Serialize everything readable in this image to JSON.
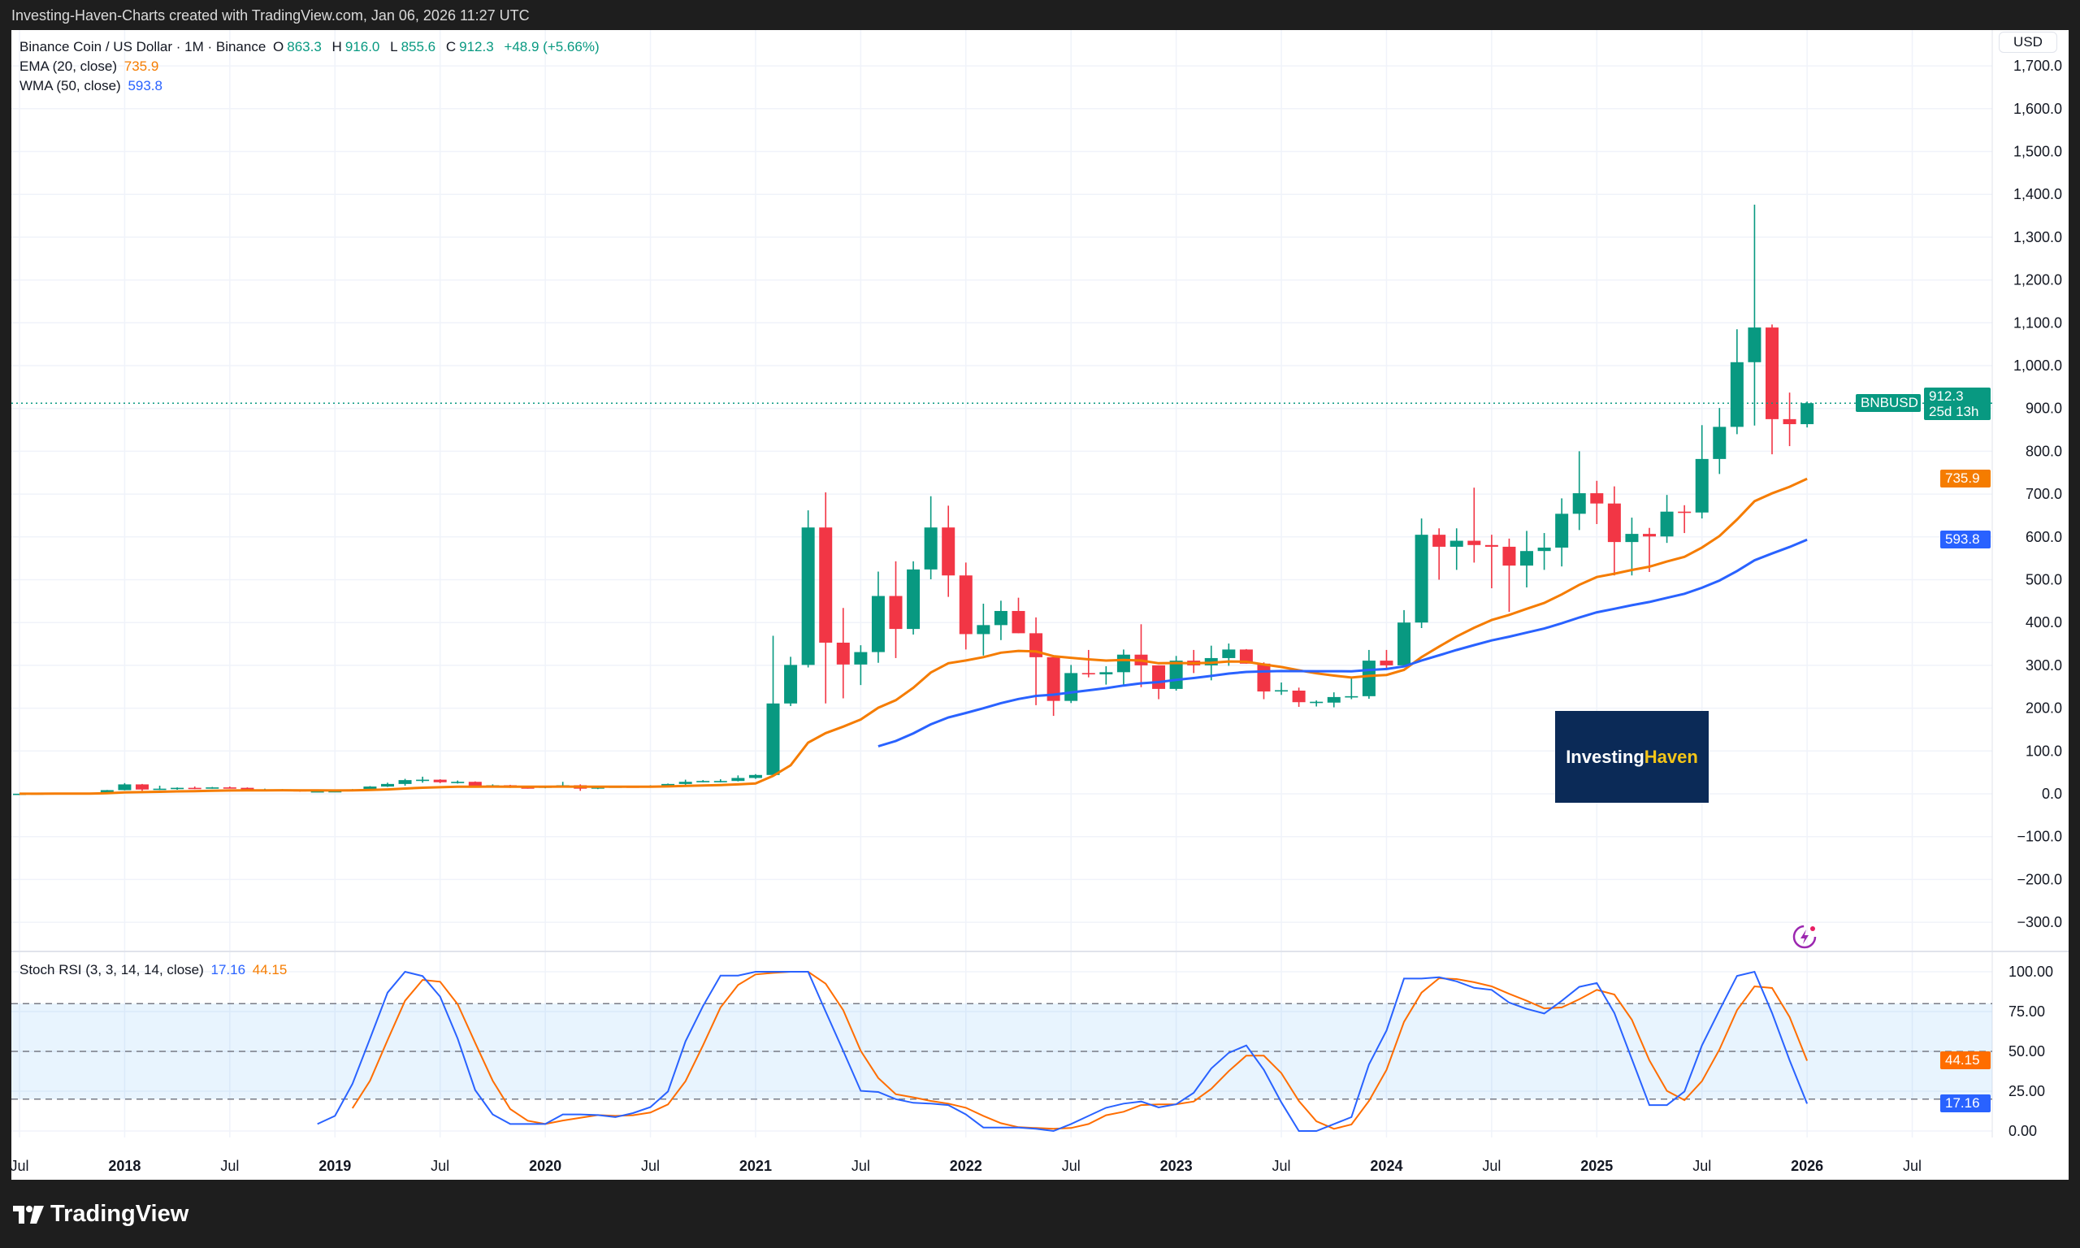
{
  "header": {
    "caption": "Investing-Haven-Charts created with TradingView.com, Jan 06, 2026 11:27 UTC"
  },
  "legend": {
    "symbol": "Binance Coin / US Dollar · 1M · Binance",
    "o_label": "O",
    "o": "863.3",
    "h_label": "H",
    "h": "916.0",
    "l_label": "L",
    "l": "855.6",
    "c_label": "C",
    "c": "912.3",
    "change": "+48.9 (+5.66%)",
    "ema_label": "EMA (20, close)",
    "ema_value": "735.9",
    "wma_label": "WMA (50, close)",
    "wma_value": "593.8",
    "stoch_label": "Stoch RSI (3, 3, 14, 14, close)",
    "stoch_k": "17.16",
    "stoch_d": "44.15"
  },
  "price_axis": {
    "currency": "USD",
    "ticks": [
      "1,700.0",
      "1,600.0",
      "1,500.0",
      "1,400.0",
      "1,300.0",
      "1,200.0",
      "1,100.0",
      "1,000.0",
      "900.0",
      "800.0",
      "700.0",
      "600.0",
      "500.0",
      "400.0",
      "300.0",
      "200.0",
      "100.0",
      "0.0",
      "−100.0",
      "−200.0",
      "−300.0"
    ],
    "tick_values": [
      1700,
      1600,
      1500,
      1400,
      1300,
      1200,
      1100,
      1000,
      900,
      800,
      700,
      600,
      500,
      400,
      300,
      200,
      100,
      0,
      -100,
      -200,
      -300
    ],
    "symbol_tag": "BNBUSD",
    "last_price": "912.3",
    "countdown": "25d 13h",
    "ema_tag": "735.9",
    "wma_tag": "593.8"
  },
  "stoch_axis": {
    "ticks": [
      "100.00",
      "75.00",
      "50.00",
      "25.00",
      "0.00"
    ],
    "tick_values": [
      100,
      75,
      50,
      25,
      0
    ],
    "k_tag": "17.16",
    "d_tag": "44.15"
  },
  "time_axis": {
    "labels": [
      "Jul",
      "2018",
      "Jul",
      "2019",
      "Jul",
      "2020",
      "Jul",
      "2021",
      "Jul",
      "2022",
      "Jul",
      "2023",
      "Jul",
      "2024",
      "Jul",
      "2025",
      "Jul",
      "2026",
      "Jul"
    ],
    "label_months": [
      "2017-07",
      "2018-01",
      "2018-07",
      "2019-01",
      "2019-07",
      "2020-01",
      "2020-07",
      "2021-01",
      "2021-07",
      "2022-01",
      "2022-07",
      "2023-01",
      "2023-07",
      "2024-01",
      "2024-07",
      "2025-01",
      "2025-07",
      "2026-01",
      "2026-07"
    ]
  },
  "watermark": {
    "part1": "Investing",
    "part2": "Haven"
  },
  "footer": {
    "brand": "TradingView"
  },
  "colors": {
    "up": "#089981",
    "down": "#f23645",
    "ema": "#f57c00",
    "wma": "#2962ff",
    "stoch_k": "#2962ff",
    "stoch_d": "#ff6d00",
    "band": "#2196f3"
  },
  "chart_data": {
    "type": "candlestick",
    "symbol": "BNBUSD",
    "interval": "1M",
    "ylim": [
      -300,
      1700
    ],
    "grid": true,
    "columns": [
      "month",
      "open",
      "high",
      "low",
      "close"
    ],
    "ohlc": [
      [
        "2017-07",
        0.1,
        0.3,
        0.1,
        0.2
      ],
      [
        "2017-08",
        0.2,
        1.0,
        0.2,
        0.9
      ],
      [
        "2017-09",
        0.9,
        2.0,
        0.8,
        1.6
      ],
      [
        "2017-10",
        1.6,
        1.8,
        1.3,
        1.5
      ],
      [
        "2017-11",
        1.5,
        2.2,
        1.4,
        1.9
      ],
      [
        "2017-12",
        1.9,
        9.0,
        1.9,
        8.6
      ],
      [
        "2018-01",
        8.6,
        25,
        8,
        22
      ],
      [
        "2018-02",
        22,
        23,
        7,
        10
      ],
      [
        "2018-03",
        10,
        19,
        9,
        12
      ],
      [
        "2018-04",
        12,
        15,
        9.5,
        14
      ],
      [
        "2018-05",
        14,
        17,
        11,
        13
      ],
      [
        "2018-06",
        13,
        16,
        12,
        15
      ],
      [
        "2018-07",
        15,
        17,
        13,
        14
      ],
      [
        "2018-08",
        14,
        15,
        9,
        10
      ],
      [
        "2018-09",
        10,
        12,
        9,
        10
      ],
      [
        "2018-10",
        10,
        11,
        9,
        10
      ],
      [
        "2018-11",
        10,
        10,
        5,
        5.5
      ],
      [
        "2018-12",
        5.5,
        6.5,
        4.2,
        6
      ],
      [
        "2019-01",
        6,
        7,
        5,
        6.3
      ],
      [
        "2019-02",
        6.3,
        11,
        6,
        10.3
      ],
      [
        "2019-03",
        10.3,
        18,
        10,
        17
      ],
      [
        "2019-04",
        17,
        26,
        16,
        23
      ],
      [
        "2019-05",
        23,
        35,
        19,
        32
      ],
      [
        "2019-06",
        32,
        40,
        26,
        33
      ],
      [
        "2019-07",
        33,
        34,
        25,
        27
      ],
      [
        "2019-08",
        27,
        31,
        24,
        28
      ],
      [
        "2019-09",
        28,
        29,
        15,
        16
      ],
      [
        "2019-10",
        16,
        22,
        15,
        20
      ],
      [
        "2019-11",
        20,
        21,
        14,
        15
      ],
      [
        "2019-12",
        15,
        16,
        12,
        14
      ],
      [
        "2020-01",
        14,
        19,
        13,
        18
      ],
      [
        "2020-02",
        18,
        28,
        17,
        20
      ],
      [
        "2020-03",
        20,
        22,
        7,
        12
      ],
      [
        "2020-04",
        12,
        18,
        11,
        17
      ],
      [
        "2020-05",
        17,
        18,
        15,
        17
      ],
      [
        "2020-06",
        17,
        18,
        15,
        16
      ],
      [
        "2020-07",
        16,
        20,
        15,
        19
      ],
      [
        "2020-08",
        19,
        24,
        18,
        23
      ],
      [
        "2020-09",
        23,
        33,
        21,
        28
      ],
      [
        "2020-10",
        28,
        32,
        27,
        30
      ],
      [
        "2020-11",
        30,
        34,
        27,
        30
      ],
      [
        "2020-12",
        30,
        43,
        29,
        37
      ],
      [
        "2021-01",
        37,
        46,
        35,
        44
      ],
      [
        "2021-02",
        44,
        369,
        40,
        211
      ],
      [
        "2021-03",
        211,
        320,
        205,
        301
      ],
      [
        "2021-04",
        301,
        662,
        295,
        622
      ],
      [
        "2021-05",
        622,
        704,
        211,
        353
      ],
      [
        "2021-06",
        353,
        434,
        223,
        302
      ],
      [
        "2021-07",
        302,
        347,
        254,
        331
      ],
      [
        "2021-08",
        331,
        519,
        306,
        462
      ],
      [
        "2021-09",
        462,
        543,
        317,
        385
      ],
      [
        "2021-10",
        385,
        543,
        372,
        524
      ],
      [
        "2021-11",
        524,
        695,
        501,
        622
      ],
      [
        "2021-12",
        622,
        673,
        460,
        510
      ],
      [
        "2022-01",
        510,
        540,
        337,
        373
      ],
      [
        "2022-02",
        373,
        444,
        323,
        394
      ],
      [
        "2022-03",
        394,
        451,
        359,
        427
      ],
      [
        "2022-04",
        427,
        458,
        375,
        375
      ],
      [
        "2022-05",
        375,
        412,
        207,
        319
      ],
      [
        "2022-06",
        319,
        320,
        182,
        217
      ],
      [
        "2022-07",
        217,
        301,
        212,
        282
      ],
      [
        "2022-08",
        282,
        336,
        272,
        279
      ],
      [
        "2022-09",
        279,
        298,
        255,
        284
      ],
      [
        "2022-10",
        284,
        337,
        255,
        325
      ],
      [
        "2022-11",
        325,
        396,
        249,
        300
      ],
      [
        "2022-12",
        300,
        300,
        221,
        245
      ],
      [
        "2023-01",
        245,
        322,
        241,
        311
      ],
      [
        "2023-02",
        311,
        336,
        282,
        300
      ],
      [
        "2023-03",
        300,
        346,
        265,
        317
      ],
      [
        "2023-04",
        317,
        351,
        299,
        337
      ],
      [
        "2023-05",
        337,
        338,
        304,
        304
      ],
      [
        "2023-06",
        304,
        307,
        221,
        239
      ],
      [
        "2023-07",
        241,
        260,
        231,
        242
      ],
      [
        "2023-08",
        241,
        248,
        203,
        214
      ],
      [
        "2023-09",
        215,
        218,
        204,
        215
      ],
      [
        "2023-10",
        213,
        237,
        202,
        226
      ],
      [
        "2023-11",
        226,
        272,
        221,
        228
      ],
      [
        "2023-12",
        228,
        336,
        222,
        311
      ],
      [
        "2024-01",
        311,
        336,
        290,
        300
      ],
      [
        "2024-02",
        300,
        429,
        295,
        400
      ],
      [
        "2024-03",
        400,
        643,
        387,
        605
      ],
      [
        "2024-04",
        605,
        620,
        500,
        577
      ],
      [
        "2024-05",
        577,
        620,
        523,
        591
      ],
      [
        "2024-06",
        591,
        715,
        540,
        581
      ],
      [
        "2024-07",
        581,
        605,
        480,
        577
      ],
      [
        "2024-08",
        577,
        596,
        425,
        533
      ],
      [
        "2024-09",
        533,
        614,
        482,
        567
      ],
      [
        "2024-10",
        567,
        609,
        523,
        575
      ],
      [
        "2024-11",
        575,
        690,
        531,
        654
      ],
      [
        "2024-12",
        654,
        800,
        616,
        702
      ],
      [
        "2025-01",
        702,
        731,
        630,
        678
      ],
      [
        "2025-02",
        678,
        718,
        510,
        588
      ],
      [
        "2025-03",
        588,
        645,
        510,
        607
      ],
      [
        "2025-04",
        607,
        621,
        518,
        601
      ],
      [
        "2025-05",
        601,
        698,
        586,
        659
      ],
      [
        "2025-06",
        659,
        674,
        609,
        657
      ],
      [
        "2025-07",
        657,
        861,
        643,
        782
      ],
      [
        "2025-08",
        782,
        901,
        747,
        857
      ],
      [
        "2025-09",
        857,
        1085,
        840,
        1008
      ],
      [
        "2025-10",
        1008,
        1376,
        860,
        1089
      ],
      [
        "2025-11",
        1089,
        1096,
        793,
        875
      ],
      [
        "2025-12",
        875,
        937,
        812,
        863.3
      ],
      [
        "2026-01",
        863.3,
        916.0,
        855.6,
        912.3
      ]
    ],
    "indicators": {
      "ema": {
        "name": "EMA (20, close)",
        "period": 20,
        "last": 735.9
      },
      "wma": {
        "name": "WMA (50, close)",
        "period": 50,
        "last": 593.8
      }
    },
    "stoch_rsi": {
      "name": "Stoch RSI (3, 3, 14, 14, close)",
      "ylim": [
        0,
        100
      ],
      "band": [
        20,
        80
      ],
      "levels": [
        80,
        50,
        20
      ],
      "k_start": "2018-12",
      "k": [
        4.4,
        9.5,
        29.6,
        58,
        86.9,
        100,
        97.3,
        84.4,
        58,
        25.7,
        10.4,
        4.4,
        4.4,
        4.4,
        10.4,
        10.4,
        10,
        8.7,
        11.2,
        15,
        24.8,
        56.3,
        78.4,
        97.6,
        97.6,
        100,
        100,
        100,
        100,
        75,
        50.3,
        25.2,
        24.5,
        20,
        17.7,
        17.2,
        16.3,
        10.4,
        2.2,
        2.2,
        2.2,
        1.4,
        0,
        4.4,
        9.5,
        14.6,
        17.2,
        18.5,
        14.8,
        16.8,
        24,
        39.3,
        49.1,
        53.7,
        38.4,
        18,
        0,
        0,
        4.4,
        8.7,
        41.8,
        63.1,
        95.7,
        95.7,
        96.6,
        94,
        89.9,
        88.6,
        80.6,
        76.7,
        73.8,
        81.8,
        90.5,
        92.9,
        74.1,
        45.2,
        16.3,
        16.3,
        24.8,
        53.7,
        75.9,
        97.4,
        100,
        74.1,
        44.4,
        17.16
      ],
      "d_start": "2019-02",
      "d": [
        14.3,
        31.6,
        57.1,
        81.8,
        94.9,
        93.7,
        79.6,
        55.4,
        31.6,
        13.8,
        6.5,
        4.4,
        6.6,
        8.3,
        10,
        9.5,
        9.9,
        11.6,
        16.7,
        31.3,
        53.7,
        77.6,
        91.7,
        98.3,
        99.3,
        100,
        100,
        92.5,
        75.9,
        50.3,
        33.3,
        23.1,
        21.1,
        18.9,
        17.2,
        14.6,
        9.5,
        4.9,
        2.4,
        1.9,
        1.4,
        1.9,
        4.4,
        9.9,
        12.1,
        16.3,
        16.7,
        16.8,
        18.5,
        26.5,
        37.6,
        47.3,
        47.3,
        36.4,
        18.9,
        6.1,
        1.4,
        4.1,
        18.9,
        38.4,
        68.5,
        86.9,
        95.9,
        95.4,
        93.4,
        90.8,
        86.1,
        81.8,
        77,
        77.6,
        82.7,
        88.6,
        85.7,
        69.9,
        44.4,
        25.2,
        19.4,
        31.3,
        51.2,
        75.9,
        90.8,
        89.8,
        71.6,
        44.15
      ]
    }
  }
}
